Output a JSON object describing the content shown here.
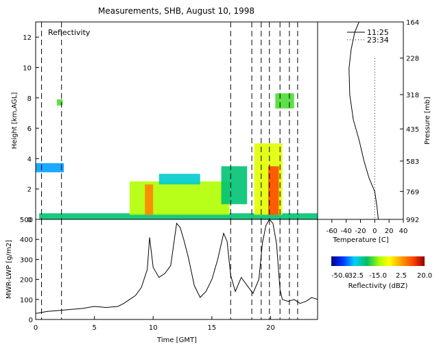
{
  "title": "Measurements, SHB, August 10, 1998",
  "chart_data": [
    {
      "type": "heatmap",
      "title": "Reflectivity",
      "ylabel": "Height [km,AGL]",
      "xlim": [
        0,
        24
      ],
      "ylim": [
        0,
        13
      ],
      "yticks": [
        "0",
        "2",
        "4",
        "6",
        "8",
        "10",
        "12"
      ],
      "dashed_times": [
        0.5,
        2.2,
        16.6,
        18.4,
        19.2,
        19.9,
        20.8,
        21.6,
        22.3
      ],
      "regions": [
        {
          "x0": 0.0,
          "x1": 2.4,
          "y0": 3.1,
          "y1": 3.7,
          "dbz": -35
        },
        {
          "x0": 0.3,
          "x1": 24.0,
          "y0": 0.0,
          "y1": 0.4,
          "dbz": -25
        },
        {
          "x0": 8.0,
          "x1": 16.5,
          "y0": 0.3,
          "y1": 2.5,
          "dbz": -15
        },
        {
          "x0": 9.3,
          "x1": 10.0,
          "y0": 0.3,
          "y1": 2.3,
          "dbz": 5
        },
        {
          "x0": 10.5,
          "x1": 14.0,
          "y0": 2.3,
          "y1": 3.0,
          "dbz": -30
        },
        {
          "x0": 15.8,
          "x1": 18.0,
          "y0": 1.0,
          "y1": 3.5,
          "dbz": -25
        },
        {
          "x0": 18.6,
          "x1": 21.0,
          "y0": 0.3,
          "y1": 5.0,
          "dbz": -10
        },
        {
          "x0": 19.8,
          "x1": 20.7,
          "y0": 0.3,
          "y1": 3.5,
          "dbz": 10
        },
        {
          "x0": 20.4,
          "x1": 22.0,
          "y0": 7.3,
          "y1": 8.3,
          "dbz": -20
        },
        {
          "x0": 1.8,
          "x1": 2.3,
          "y0": 7.5,
          "y1": 7.9,
          "dbz": -20
        }
      ]
    },
    {
      "type": "line",
      "xlabel": "Time [GMT]",
      "ylabel": "MWR-LWP [g/m2]",
      "xlim": [
        0,
        24
      ],
      "ylim": [
        0,
        500
      ],
      "xticks": [
        "0",
        "5",
        "10",
        "15",
        "20"
      ],
      "yticks": [
        "0",
        "100",
        "200",
        "300",
        "400",
        "500"
      ],
      "x": [
        0,
        1,
        2,
        3,
        4,
        5,
        6,
        7,
        7.5,
        8,
        8.5,
        9,
        9.5,
        9.7,
        10,
        10.5,
        11,
        11.5,
        12,
        12.3,
        12.6,
        13,
        13.5,
        14,
        14.5,
        15,
        15.5,
        16,
        16.3,
        16.6,
        17,
        17.5,
        18,
        18.5,
        19,
        19.3,
        19.6,
        19.9,
        20.2,
        20.5,
        20.8,
        21,
        21.5,
        22,
        22.5,
        23,
        23.5,
        24
      ],
      "y": [
        30,
        40,
        45,
        50,
        55,
        65,
        60,
        65,
        80,
        100,
        120,
        160,
        250,
        410,
        260,
        210,
        230,
        270,
        480,
        460,
        400,
        310,
        170,
        110,
        140,
        200,
        300,
        430,
        390,
        220,
        140,
        210,
        170,
        130,
        200,
        380,
        470,
        500,
        480,
        380,
        150,
        100,
        90,
        100,
        80,
        90,
        110,
        100
      ]
    },
    {
      "type": "line",
      "xlabel": "Temperature [C]",
      "ylabel": "Pressure [mb]",
      "xlim": [
        -80,
        40
      ],
      "xticks": [
        "-60",
        "-40",
        "-20",
        "0",
        "20",
        "40"
      ],
      "yticks": [
        "164",
        "228",
        "318",
        "435",
        "583",
        "769",
        "992"
      ],
      "series": [
        {
          "name": "11:25",
          "style": "solid",
          "x": [
            -22,
            -28,
            -33,
            -36,
            -35,
            -30,
            -22,
            -15,
            -8,
            0,
            3,
            5
          ],
          "y": [
            164,
            180,
            210,
            250,
            318,
            400,
            480,
            583,
            680,
            769,
            880,
            992
          ]
        },
        {
          "name": "23:34",
          "style": "dotted",
          "x": [
            0,
            0
          ],
          "y": [
            228,
            992
          ]
        }
      ]
    },
    {
      "type": "colorbar",
      "label": "Reflectivity (dBZ)",
      "range": [
        -50,
        20
      ],
      "tick_labels": [
        "-50.0",
        "-32.5",
        "-15.0",
        "2.5",
        "20.0"
      ]
    }
  ]
}
